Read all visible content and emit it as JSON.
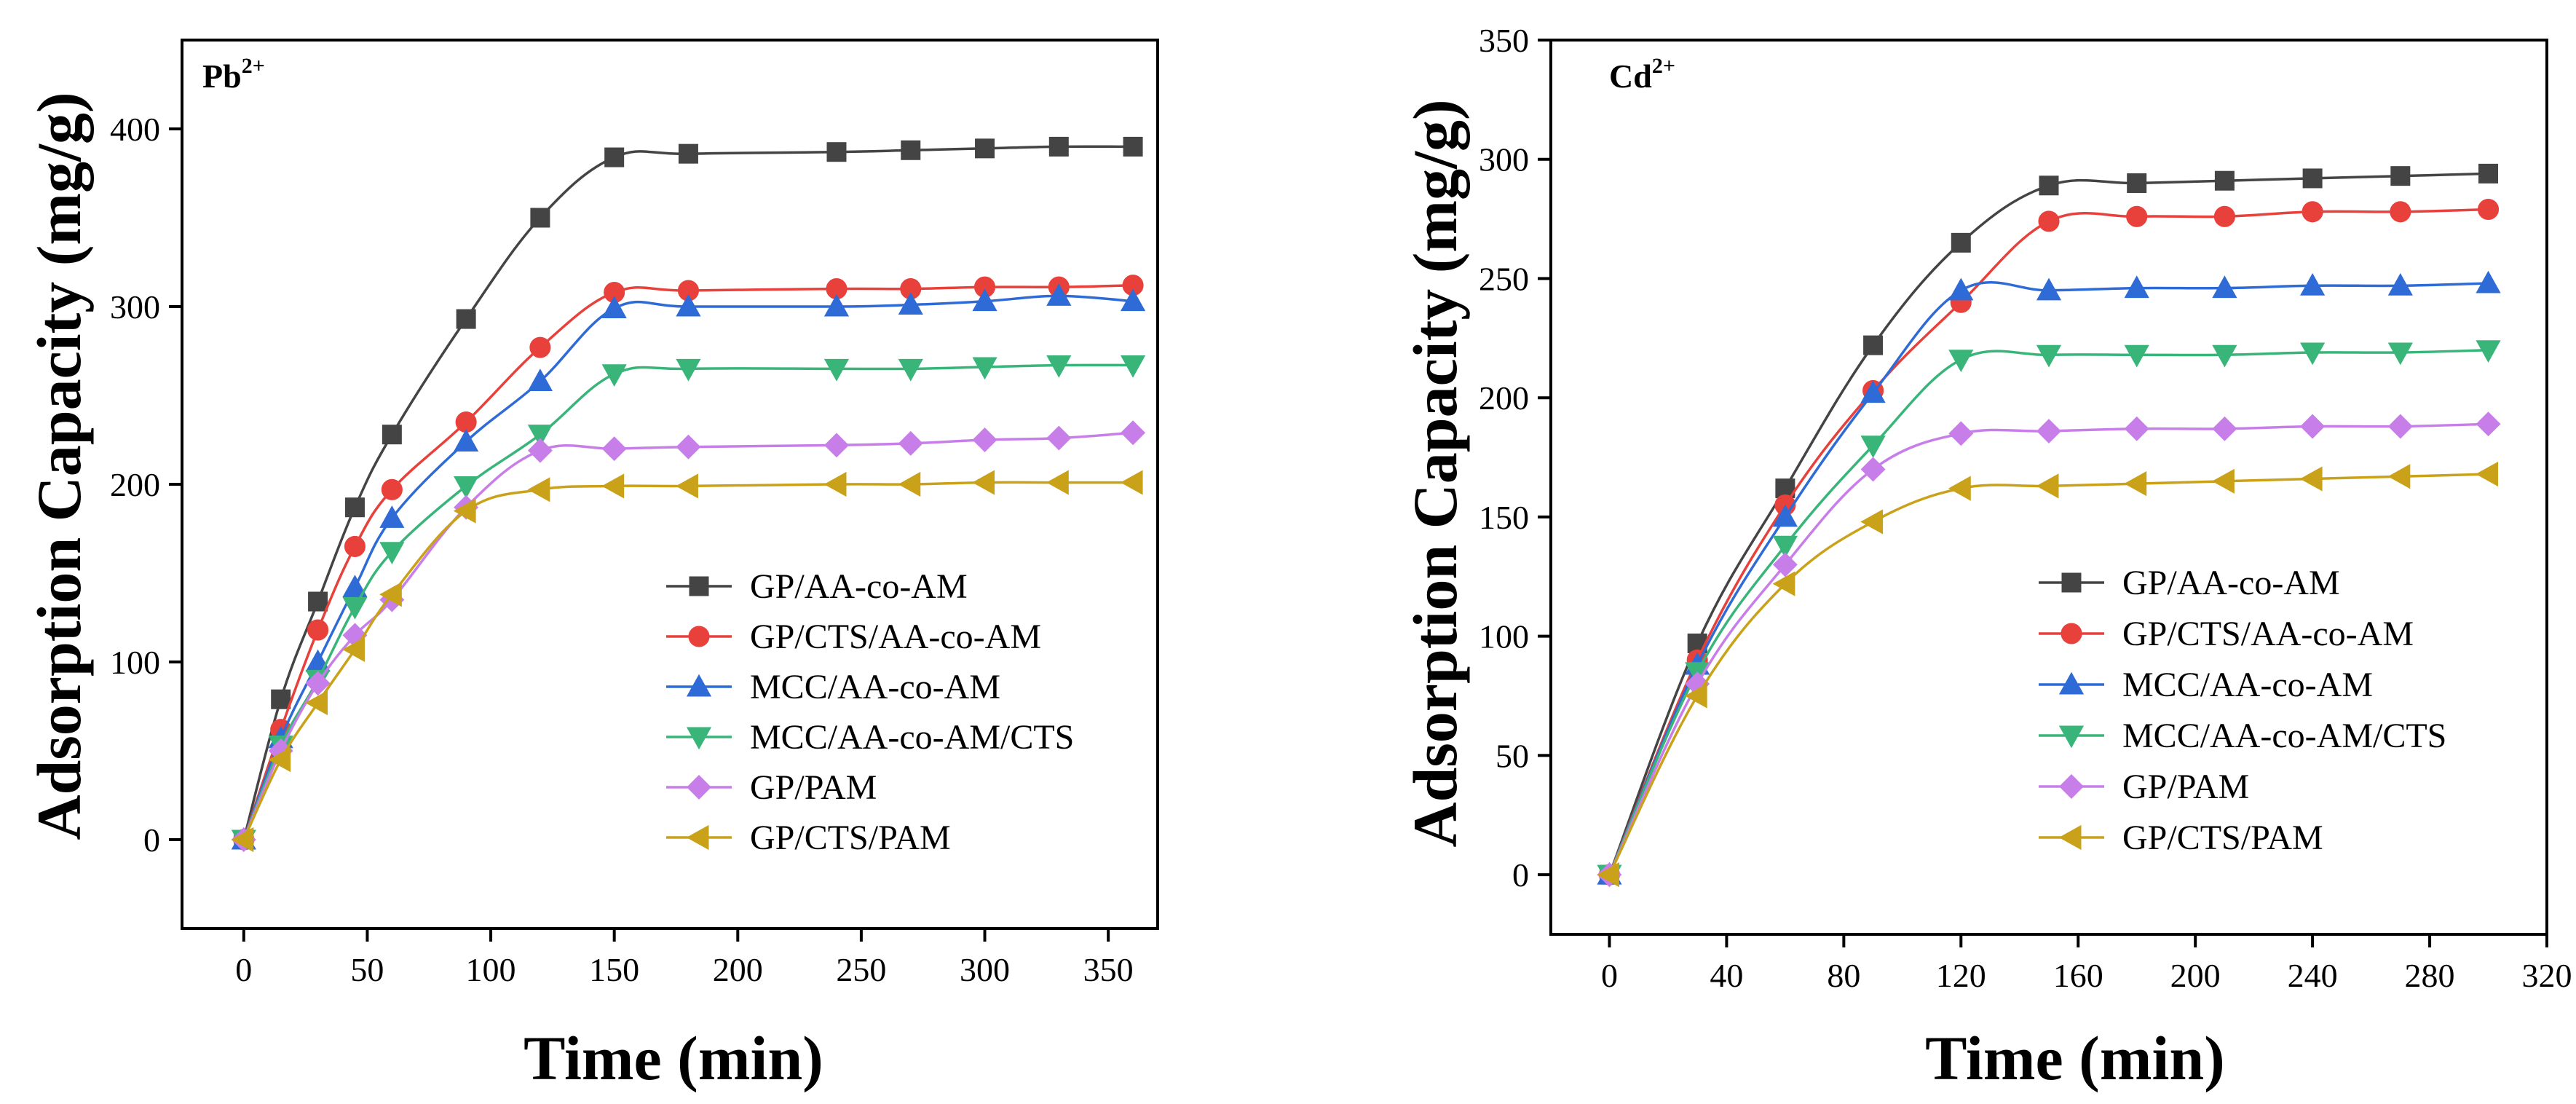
{
  "chart_data": [
    {
      "type": "line",
      "annotation": "Pb",
      "annotation_sup": "2+",
      "xlabel": "Time (min)",
      "ylabel": "Adsorption Capacity (mg/g)",
      "xlim": [
        -25,
        370
      ],
      "ylim": [
        -50,
        450
      ],
      "xticks": [
        0,
        50,
        100,
        150,
        200,
        250,
        300,
        350
      ],
      "yticks": [
        0,
        100,
        200,
        300,
        400
      ],
      "legend_position": "bottom-right",
      "x": [
        0,
        15,
        30,
        45,
        60,
        90,
        120,
        150,
        180,
        240,
        270,
        300,
        330,
        360
      ],
      "series": [
        {
          "name": "GP/AA-co-AM",
          "color": "#444444",
          "marker": "square",
          "values": [
            0,
            79,
            134,
            187,
            228,
            293,
            350,
            384,
            386,
            387,
            388,
            389,
            390,
            390
          ]
        },
        {
          "name": "GP/CTS/AA-co-AM",
          "color": "#e8413c",
          "marker": "circle",
          "values": [
            0,
            62,
            118,
            165,
            197,
            235,
            277,
            308,
            309,
            310,
            310,
            311,
            311,
            312
          ]
        },
        {
          "name": "MCC/AA-co-AM",
          "color": "#2f6bd6",
          "marker": "triangle-up",
          "values": [
            0,
            57,
            100,
            142,
            181,
            224,
            258,
            299,
            300,
            300,
            301,
            303,
            306,
            303
          ]
        },
        {
          "name": "MCC/AA-co-AM/CTS",
          "color": "#3ab57a",
          "marker": "triangle-down",
          "values": [
            0,
            53,
            90,
            131,
            162,
            199,
            228,
            262,
            265,
            265,
            265,
            266,
            267,
            267
          ]
        },
        {
          "name": "GP/PAM",
          "color": "#c77ee8",
          "marker": "diamond",
          "values": [
            0,
            50,
            88,
            115,
            135,
            187,
            219,
            220,
            221,
            222,
            223,
            225,
            226,
            229
          ]
        },
        {
          "name": "GP/CTS/PAM",
          "color": "#c9a21a",
          "marker": "triangle-left",
          "values": [
            0,
            45,
            77,
            107,
            138,
            185,
            197,
            199,
            199,
            200,
            200,
            201,
            201,
            201
          ]
        }
      ]
    },
    {
      "type": "line",
      "annotation": "Cd",
      "annotation_sup": "2+",
      "xlabel": "Time (min)",
      "ylabel": "Adsorption Capacity (mg/g)",
      "xlim": [
        -20,
        320
      ],
      "ylim": [
        -25,
        350
      ],
      "xticks": [
        0,
        40,
        80,
        120,
        160,
        200,
        240,
        280,
        320
      ],
      "yticks": [
        0,
        50,
        100,
        150,
        200,
        250,
        300,
        350
      ],
      "legend_position": "bottom-right",
      "x": [
        0,
        30,
        60,
        90,
        120,
        150,
        180,
        210,
        240,
        270,
        300
      ],
      "series": [
        {
          "name": "GP/AA-co-AM",
          "color": "#444444",
          "marker": "square",
          "values": [
            0,
            97,
            162,
            222,
            265,
            289,
            290,
            291,
            292,
            293,
            294
          ]
        },
        {
          "name": "GP/CTS/AA-co-AM",
          "color": "#e8413c",
          "marker": "circle",
          "values": [
            0,
            90,
            155,
            203,
            240,
            274,
            276,
            276,
            278,
            278,
            279
          ]
        },
        {
          "name": "MCC/AA-co-AM",
          "color": "#2f6bd6",
          "marker": "triangle-up",
          "values": [
            0,
            88,
            150,
            202,
            245,
            245,
            246,
            246,
            247,
            247,
            248
          ]
        },
        {
          "name": "MCC/AA-co-AM/CTS",
          "color": "#3ab57a",
          "marker": "triangle-down",
          "values": [
            0,
            85,
            138,
            180,
            216,
            218,
            218,
            218,
            219,
            219,
            220
          ]
        },
        {
          "name": "GP/PAM",
          "color": "#c77ee8",
          "marker": "diamond",
          "values": [
            0,
            80,
            130,
            170,
            185,
            186,
            187,
            187,
            188,
            188,
            189
          ]
        },
        {
          "name": "GP/CTS/PAM",
          "color": "#c9a21a",
          "marker": "triangle-left",
          "values": [
            0,
            75,
            122,
            148,
            162,
            163,
            164,
            165,
            166,
            167,
            168
          ]
        }
      ]
    }
  ]
}
